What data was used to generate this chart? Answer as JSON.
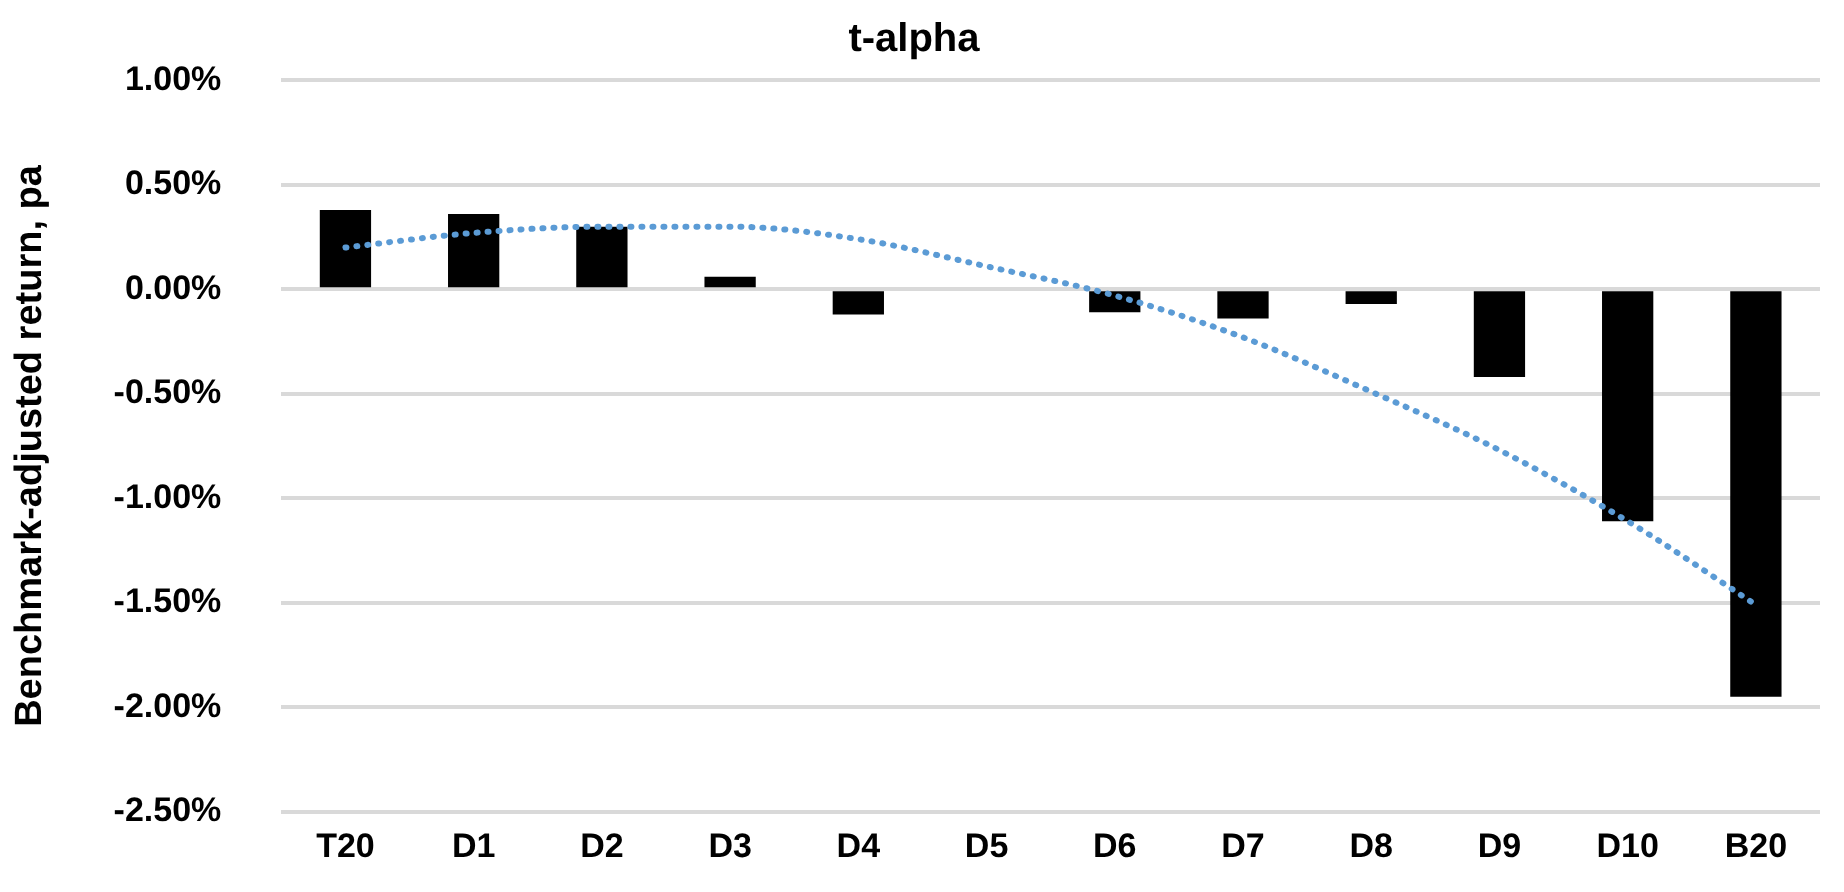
{
  "chart_data": {
    "type": "bar",
    "title": "t-alpha",
    "ylabel": "Benchmark-adjusted return, pa",
    "categories": [
      "T20",
      "D1",
      "D2",
      "D3",
      "D4",
      "D5",
      "D6",
      "D7",
      "D8",
      "D9",
      "D10",
      "B20"
    ],
    "series": [
      {
        "color": "#000000",
        "values": [
          0.38,
          0.36,
          0.3,
          0.06,
          -0.12,
          0,
          -0.11,
          -0.14,
          -0.07,
          -0.42,
          -1.11,
          -1.95
        ]
      },
      {
        "type": "line",
        "color": "#5b9bd5",
        "line_style": "dotted",
        "marker": "none",
        "values": [
          0.2,
          0.27,
          0.3,
          0.3,
          0.24,
          0.11,
          -0.03,
          -0.23,
          -0.49,
          -0.77,
          -1.11,
          -1.51
        ]
      }
    ],
    "ylim": [
      -2.5,
      1
    ],
    "yticks": [
      {
        "value": 1,
        "label": "1.00%"
      },
      {
        "value": 0.5,
        "label": "0.50%"
      },
      {
        "value": 0,
        "label": "0.00%"
      },
      {
        "value": -0.5,
        "label": "-0.50%"
      },
      {
        "value": -1,
        "label": "-1.00%"
      },
      {
        "value": -1.5,
        "label": "-1.50%"
      },
      {
        "value": -2,
        "label": "-2.00%"
      },
      {
        "value": -2.5,
        "label": "-2.50%"
      }
    ],
    "grid": "y",
    "legend": false
  }
}
